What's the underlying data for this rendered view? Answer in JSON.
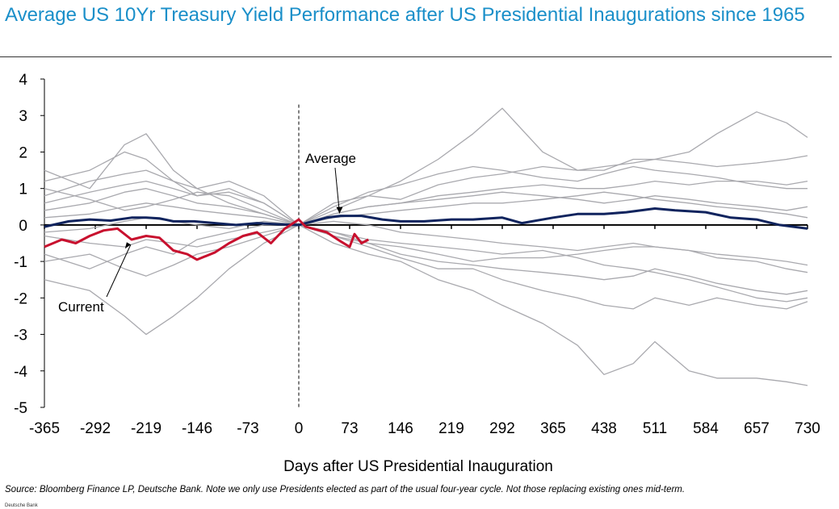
{
  "header": {
    "title": "Average US 10Yr Treasury Yield Performance after US Presidential Inaugurations since 1965"
  },
  "footer": {
    "source": "Source: Bloomberg Finance LP, Deutsche Bank. Note we only use Presidents elected as part of the usual four-year cycle. Not those replacing existing ones mid-term.",
    "brand": "Deutsche Bank"
  },
  "colors": {
    "title": "#1a8fc9",
    "individual": "#a9a9ae",
    "average": "#10245e",
    "current": "#c8102e"
  },
  "chart_data": {
    "type": "line",
    "title": "",
    "xlabel": "Days after US Presidential Inauguration",
    "ylabel": "",
    "xlim": [
      -365,
      730
    ],
    "ylim": [
      -5,
      4
    ],
    "x_ticks": [
      -365,
      -292,
      -219,
      -146,
      -73,
      0,
      73,
      146,
      219,
      292,
      365,
      438,
      511,
      584,
      657,
      730
    ],
    "y_ticks": [
      4,
      3,
      2,
      1,
      0,
      -1,
      -2,
      -3,
      -4,
      -5
    ],
    "reference_line_x": 0,
    "annotations": [
      {
        "text": "Average",
        "target_x": 55,
        "target_y": 0.25
      },
      {
        "text": "Current",
        "target_x": -240,
        "target_y": -0.45
      }
    ],
    "series": [
      {
        "name": "Average",
        "x": [
          -365,
          -330,
          -300,
          -270,
          -240,
          -219,
          -200,
          -180,
          -150,
          -120,
          -90,
          -60,
          -30,
          0,
          20,
          40,
          60,
          90,
          120,
          146,
          180,
          219,
          250,
          292,
          320,
          365,
          400,
          438,
          470,
          511,
          540,
          584,
          620,
          657,
          690,
          730
        ],
        "y": [
          -0.05,
          0.1,
          0.15,
          0.12,
          0.2,
          0.2,
          0.18,
          0.1,
          0.1,
          0.05,
          0.0,
          0.05,
          0.02,
          0.0,
          0.1,
          0.2,
          0.25,
          0.25,
          0.15,
          0.1,
          0.1,
          0.15,
          0.15,
          0.2,
          0.05,
          0.2,
          0.3,
          0.3,
          0.35,
          0.45,
          0.4,
          0.35,
          0.2,
          0.15,
          0.0,
          -0.1
        ]
      },
      {
        "name": "Current",
        "x": [
          -365,
          -340,
          -320,
          -300,
          -280,
          -260,
          -240,
          -219,
          -200,
          -180,
          -160,
          -146,
          -120,
          -100,
          -80,
          -60,
          -40,
          -20,
          0,
          10,
          20,
          40,
          60,
          73,
          80,
          90,
          100
        ],
        "y": [
          -0.6,
          -0.4,
          -0.5,
          -0.3,
          -0.15,
          -0.1,
          -0.4,
          -0.3,
          -0.35,
          -0.7,
          -0.8,
          -0.95,
          -0.75,
          -0.5,
          -0.3,
          -0.2,
          -0.5,
          -0.1,
          0.15,
          -0.05,
          -0.1,
          -0.2,
          -0.45,
          -0.6,
          -0.25,
          -0.5,
          -0.4
        ]
      }
    ],
    "individual_paths": [
      {
        "x": [
          -365,
          -300,
          -250,
          -219,
          -180,
          -146,
          -100,
          -50,
          0,
          50,
          100,
          146,
          200,
          250,
          292,
          350,
          400,
          438,
          480,
          511,
          560,
          600,
          657,
          700,
          730
        ],
        "y": [
          1.5,
          1.0,
          2.2,
          2.5,
          1.5,
          1.0,
          0.6,
          0.3,
          0.0,
          0.4,
          0.8,
          1.2,
          1.8,
          2.5,
          3.2,
          2.0,
          1.5,
          1.5,
          1.8,
          1.8,
          2.0,
          2.5,
          3.1,
          2.8,
          2.4
        ]
      },
      {
        "x": [
          -365,
          -300,
          -250,
          -219,
          -180,
          -146,
          -100,
          -50,
          0,
          50,
          100,
          146,
          200,
          250,
          292,
          350,
          400,
          438,
          480,
          511,
          560,
          600,
          657,
          700,
          730
        ],
        "y": [
          1.2,
          1.5,
          2.0,
          1.8,
          1.2,
          0.8,
          1.0,
          0.6,
          0.0,
          -0.5,
          -0.8,
          -1.0,
          -1.5,
          -1.8,
          -2.2,
          -2.7,
          -3.3,
          -4.1,
          -3.8,
          -3.2,
          -4.0,
          -4.2,
          -4.2,
          -4.3,
          -4.4
        ]
      },
      {
        "x": [
          -365,
          -300,
          -250,
          -219,
          -180,
          -146,
          -100,
          -50,
          0,
          50,
          100,
          146,
          200,
          250,
          292,
          350,
          400,
          438,
          480,
          511,
          560,
          600,
          657,
          700,
          730
        ],
        "y": [
          -1.5,
          -1.8,
          -2.5,
          -3.0,
          -2.5,
          -2.0,
          -1.2,
          -0.5,
          0.0,
          -0.3,
          -0.6,
          -0.9,
          -1.2,
          -1.2,
          -1.5,
          -1.8,
          -2.0,
          -2.2,
          -2.3,
          -2.0,
          -2.2,
          -2.0,
          -2.2,
          -2.3,
          -2.1
        ]
      },
      {
        "x": [
          -365,
          -300,
          -250,
          -219,
          -180,
          -146,
          -100,
          -50,
          0,
          50,
          100,
          146,
          200,
          250,
          292,
          350,
          400,
          438,
          480,
          511,
          560,
          600,
          657,
          700,
          730
        ],
        "y": [
          0.8,
          1.2,
          1.4,
          1.5,
          1.2,
          1.0,
          1.2,
          0.8,
          0.0,
          0.6,
          0.8,
          0.7,
          1.1,
          1.3,
          1.4,
          1.6,
          1.5,
          1.6,
          1.7,
          1.8,
          1.7,
          1.6,
          1.7,
          1.8,
          1.9
        ]
      },
      {
        "x": [
          -365,
          -300,
          -250,
          -219,
          -180,
          -146,
          -100,
          -50,
          0,
          50,
          100,
          146,
          200,
          250,
          292,
          350,
          400,
          438,
          480,
          511,
          560,
          600,
          657,
          700,
          730
        ],
        "y": [
          -0.8,
          -1.2,
          -0.8,
          -0.6,
          -0.8,
          -0.4,
          -0.2,
          0.0,
          0.0,
          -0.3,
          -0.5,
          -0.6,
          -0.8,
          -1.0,
          -0.9,
          -0.9,
          -0.8,
          -0.7,
          -0.6,
          -0.6,
          -0.7,
          -0.9,
          -1.0,
          -1.2,
          -1.3
        ]
      },
      {
        "x": [
          -365,
          -300,
          -250,
          -219,
          -180,
          -146,
          -100,
          -50,
          0,
          50,
          100,
          146,
          200,
          250,
          292,
          350,
          400,
          438,
          480,
          511,
          560,
          600,
          657,
          700,
          730
        ],
        "y": [
          0.4,
          0.6,
          0.9,
          1.0,
          0.8,
          0.6,
          0.5,
          0.3,
          0.0,
          0.3,
          0.5,
          0.6,
          0.8,
          0.9,
          1.0,
          1.1,
          1.0,
          1.0,
          1.1,
          1.2,
          1.1,
          1.2,
          1.2,
          1.1,
          1.2
        ]
      },
      {
        "x": [
          -365,
          -300,
          -250,
          -219,
          -180,
          -146,
          -100,
          -50,
          0,
          50,
          100,
          146,
          200,
          250,
          292,
          350,
          400,
          438,
          480,
          511,
          560,
          600,
          657,
          700,
          730
        ],
        "y": [
          -0.3,
          -0.5,
          -0.6,
          -0.4,
          -0.5,
          -0.6,
          -0.4,
          -0.2,
          0.0,
          -0.2,
          -0.5,
          -0.8,
          -1.0,
          -1.1,
          -1.2,
          -1.3,
          -1.4,
          -1.5,
          -1.4,
          -1.2,
          -1.4,
          -1.6,
          -1.8,
          -1.9,
          -1.8
        ]
      },
      {
        "x": [
          -365,
          -300,
          -250,
          -219,
          -180,
          -146,
          -100,
          -50,
          0,
          50,
          100,
          146,
          200,
          250,
          292,
          350,
          400,
          438,
          480,
          511,
          560,
          600,
          657,
          700,
          730
        ],
        "y": [
          0.2,
          0.3,
          0.5,
          0.6,
          0.5,
          0.4,
          0.3,
          0.2,
          0.0,
          0.2,
          0.3,
          0.4,
          0.5,
          0.6,
          0.6,
          0.7,
          0.8,
          0.9,
          0.8,
          0.7,
          0.6,
          0.5,
          0.4,
          0.3,
          0.2
        ]
      },
      {
        "x": [
          -365,
          -300,
          -250,
          -219,
          -180,
          -146,
          -100,
          -50,
          0,
          50,
          100,
          146,
          200,
          250,
          292,
          350,
          400,
          438,
          480,
          511,
          560,
          600,
          657,
          700,
          730
        ],
        "y": [
          -0.2,
          -0.1,
          0.1,
          0.2,
          0.1,
          0.0,
          -0.1,
          0.1,
          0.0,
          0.1,
          0.0,
          -0.2,
          -0.3,
          -0.4,
          -0.5,
          -0.6,
          -0.7,
          -0.6,
          -0.5,
          -0.6,
          -0.7,
          -0.8,
          -0.9,
          -1.0,
          -1.1
        ]
      },
      {
        "x": [
          -365,
          -300,
          -250,
          -219,
          -180,
          -146,
          -100,
          -50,
          0,
          50,
          100,
          146,
          200,
          250,
          292,
          350,
          400,
          438,
          480,
          511,
          560,
          600,
          657,
          700,
          730
        ],
        "y": [
          1.0,
          0.7,
          0.4,
          0.5,
          0.7,
          0.9,
          0.8,
          0.4,
          0.0,
          0.5,
          0.9,
          1.1,
          1.4,
          1.6,
          1.5,
          1.3,
          1.2,
          1.4,
          1.6,
          1.5,
          1.4,
          1.3,
          1.1,
          1.0,
          1.0
        ]
      },
      {
        "x": [
          -365,
          -300,
          -250,
          -219,
          -180,
          -146,
          -100,
          -50,
          0,
          50,
          100,
          146,
          200,
          250,
          292,
          350,
          400,
          438,
          480,
          511,
          560,
          600,
          657,
          700,
          730
        ],
        "y": [
          -1.0,
          -0.8,
          -1.2,
          -1.4,
          -1.1,
          -0.8,
          -0.6,
          -0.3,
          0.0,
          -0.2,
          -0.4,
          -0.5,
          -0.6,
          -0.7,
          -0.8,
          -0.7,
          -0.9,
          -1.1,
          -1.2,
          -1.3,
          -1.5,
          -1.7,
          -2.0,
          -2.1,
          -2.0
        ]
      },
      {
        "x": [
          -365,
          -300,
          -250,
          -219,
          -180,
          -146,
          -100,
          -50,
          0,
          50,
          100,
          146,
          200,
          250,
          292,
          350,
          400,
          438,
          480,
          511,
          560,
          600,
          657,
          700,
          730
        ],
        "y": [
          0.6,
          0.9,
          1.1,
          1.2,
          1.0,
          0.8,
          0.9,
          0.6,
          0.0,
          0.3,
          0.5,
          0.6,
          0.7,
          0.8,
          0.9,
          0.8,
          0.7,
          0.6,
          0.7,
          0.8,
          0.7,
          0.6,
          0.5,
          0.4,
          0.5
        ]
      }
    ]
  }
}
